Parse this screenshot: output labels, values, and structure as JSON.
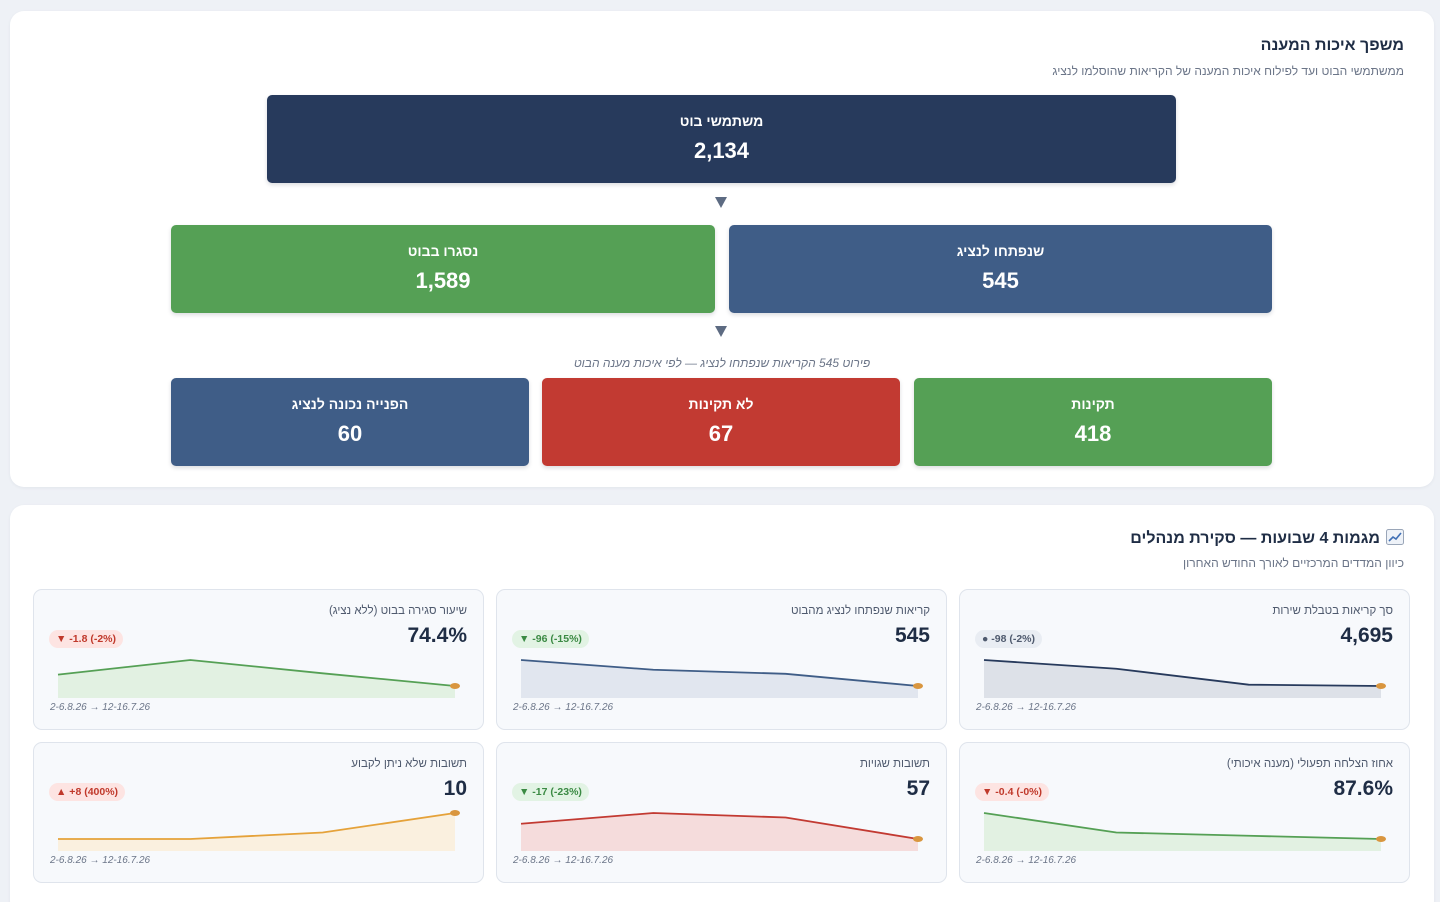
{
  "funnel": {
    "title": "משפך איכות המענה",
    "subtitle": "ממשתמשי הבוט ועד לפילוח איכות המענה של הקריאות שהוסלמו לנציג",
    "bot_users": {
      "label": "משתמשי בוט",
      "value": "2,134"
    },
    "escalated": {
      "label": "שנפתחו לנציג",
      "value": "545"
    },
    "closed_in_bot": {
      "label": "נסגרו בבוט",
      "value": "1,589"
    },
    "breakdown_note": "פירוט 545 הקריאות שנפתחו לנציג — לפי איכות מענה הבוט",
    "valid": {
      "label": "תקינות",
      "value": "418"
    },
    "invalid": {
      "label": "לא תקינות",
      "value": "67"
    },
    "correct_referral": {
      "label": "הפנייה נכונה לנציג",
      "value": "60"
    },
    "colors": {
      "navy": "#273a5c",
      "blue": "#3f5d87",
      "green": "#55a055",
      "red": "#c23a32"
    }
  },
  "trends": {
    "title": "מגמות 4 שבועות — סקירת מנהלים",
    "title_icon": "chart-increasing-icon",
    "subtitle": "כיוון המדדים המרכזיים לאורך החודש האחרון",
    "range": "2-6.8.26 → 12-16.7.26",
    "cards": [
      {
        "label": "סך קריאות בטבלת שירות",
        "value": "4,695",
        "badge": "● -98 (-2%)",
        "badge_type": "neutral",
        "color": "#273a5c",
        "fill": "#dde1e8",
        "points": [
          4793,
          4760,
          4700,
          4695
        ]
      },
      {
        "label": "קריאות שנפתחו לנציג מהבוט",
        "value": "545",
        "badge": "▼ -96 (-15%)",
        "badge_type": "good",
        "color": "#3f5d87",
        "fill": "#e1e6ef",
        "points": [
          641,
          605,
          590,
          545
        ]
      },
      {
        "label": "שיעור סגירה בבוט (ללא נציג)",
        "value": "74.4%",
        "badge": "▼ -1.8 (-2%)",
        "badge_type": "bad",
        "color": "#55a055",
        "fill": "#e2f1e2",
        "points": [
          76.2,
          78.5,
          76.4,
          74.4
        ]
      },
      {
        "label": "אחוז הצלחה תפעולי (מענה איכותי)",
        "value": "87.6%",
        "badge": "▼ -0.4 (-0%)",
        "badge_type": "bad",
        "color": "#55a055",
        "fill": "#e2f1e2",
        "points": [
          88.0,
          87.7,
          87.65,
          87.6
        ]
      },
      {
        "label": "תשובות שגויות",
        "value": "57",
        "badge": "▼ -17 (-23%)",
        "badge_type": "good",
        "color": "#c23a32",
        "fill": "#f5dcdc",
        "points": [
          74,
          86,
          81,
          57
        ]
      },
      {
        "label": "תשובות שלא ניתן לקבוע",
        "value": "10",
        "badge": "▲ +8 (400%)",
        "badge_type": "bad",
        "color": "#e5a23a",
        "fill": "#faf0df",
        "points": [
          2,
          2,
          4,
          10
        ]
      }
    ]
  }
}
